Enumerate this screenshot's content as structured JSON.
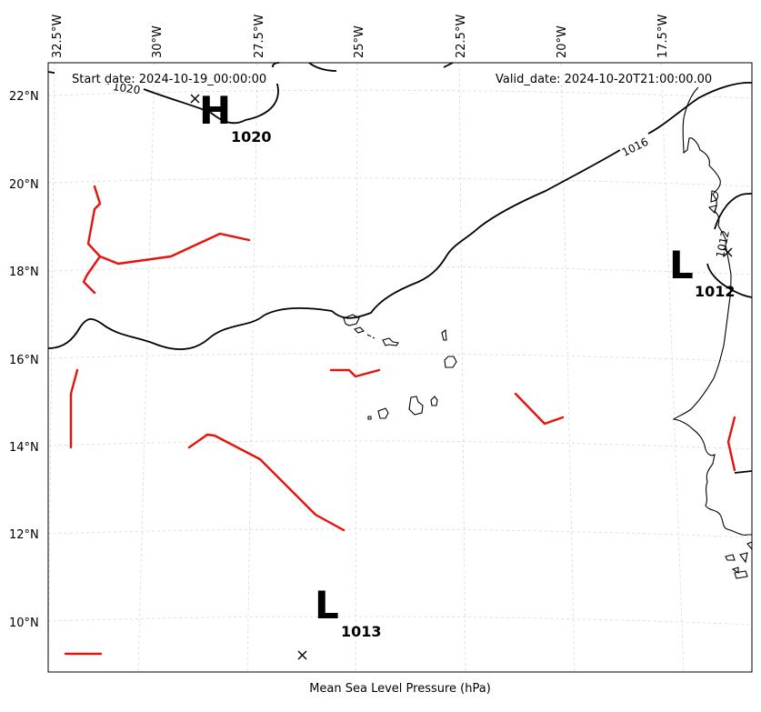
{
  "header": {
    "start_date": "Start date: 2024-10-19_00:00:00",
    "valid_date": "Valid_date: 2024-10-20T21:00:00.00"
  },
  "xlabel": "Mean Sea Level Pressure (hPa)",
  "lon_labels": [
    "32.5°W",
    "30°W",
    "27.5°W",
    "25°W",
    "22.5°W",
    "20°W",
    "17.5°W"
  ],
  "lat_labels": [
    "22°N",
    "20°N",
    "18°N",
    "16°N",
    "14°N",
    "12°N",
    "10°N"
  ],
  "pressure_centers": [
    {
      "type": "H",
      "value": "1020"
    },
    {
      "type": "L",
      "value": "1012"
    },
    {
      "type": "L",
      "value": "1013"
    }
  ],
  "isobar_labels": [
    "1016",
    "1012",
    "1020"
  ],
  "colors": {
    "fronts": "#e8120c",
    "isobars": "#000000",
    "gridlines": "#d9d9d9"
  }
}
